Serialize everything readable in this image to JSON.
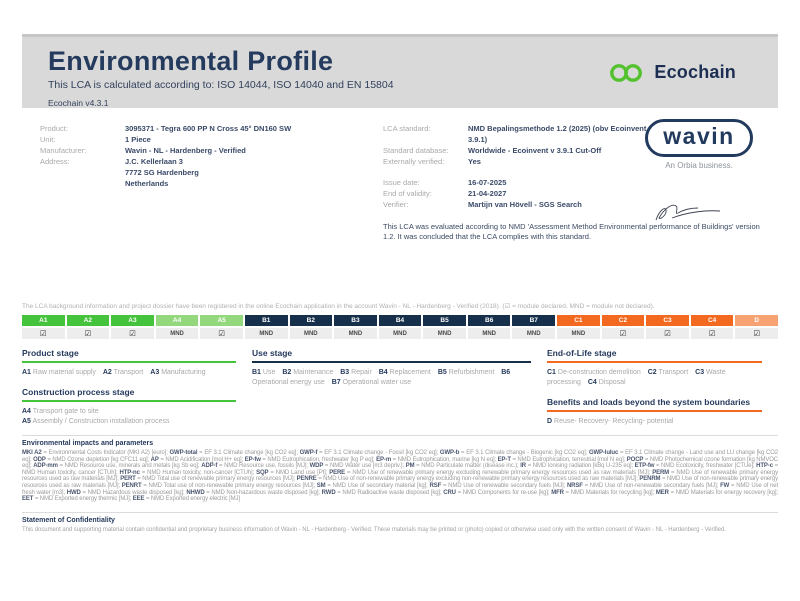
{
  "colors": {
    "brand_navy": "#223a5e",
    "ecochain_green": "#53c22e",
    "green_a": "#45c33c",
    "green_a_light": "#93d87d",
    "navy_b": "#16304c",
    "orange_c": "#f2691f",
    "salmon_d": "#f6a273",
    "band_grey": "#d9d9d9"
  },
  "header": {
    "title": "Environmental Profile",
    "subtitle": "This LCA is calculated according to: ISO 14044, ISO 14040 and EN 15804",
    "version": "Ecochain v4.3.1",
    "logo_text": "Ecochain"
  },
  "product_info": {
    "rows": [
      {
        "label": "Product:",
        "value": "3095371 - Tegra 600 PP N Cross 45° DN160 SW"
      },
      {
        "label": "Unit:",
        "value": "1 Piece"
      },
      {
        "label": "Manufacturer:",
        "value": "Wavin - NL - Hardenberg - Verified"
      },
      {
        "label": "Address:",
        "value": "J.C. Kellerlaan 3\n7772 SG Hardenberg\nNetherlands"
      }
    ]
  },
  "lca_info": {
    "rows": [
      {
        "label": "LCA standard:",
        "value": "NMD Bepalingsmethode 1.2 (2025) (obv Ecoinvent 3.9.1)"
      },
      {
        "label": "Standard database:",
        "value": "Worldwide - Ecoinvent v 3.9.1 Cut-Off"
      },
      {
        "label": "Externally verified:",
        "value": "Yes"
      }
    ],
    "rows2": [
      {
        "label": "Issue date:",
        "value": "16-07-2025"
      },
      {
        "label": "End of validity:",
        "value": "21-04-2027"
      },
      {
        "label": "Verifier:",
        "value": "Martijn van Hövell - SGS Search"
      }
    ],
    "evaluation_note": "This LCA was evaluated according to NMD 'Assessment Method Environmental performance of Buildings' version 1.2. It was concluded that the LCA complies with this standard."
  },
  "wavin": {
    "logo_text": "wavin",
    "tagline": "An Orbia business."
  },
  "registration_note": "The LCA background information and project dossier have been registered in the online Ecochain application in the account Wavin - NL - Hardenberg - Verified (2018). (☑ = module declared, MND = module not declared).",
  "module_table": {
    "declared_symbol": "☑",
    "mnd_symbol": "MND",
    "columns": [
      {
        "code": "A1",
        "group": "ga1",
        "status": "declared"
      },
      {
        "code": "A2",
        "group": "ga1",
        "status": "declared"
      },
      {
        "code": "A3",
        "group": "ga1",
        "status": "declared"
      },
      {
        "code": "A4",
        "group": "ga2",
        "status": "mnd"
      },
      {
        "code": "A5",
        "group": "ga2",
        "status": "declared"
      },
      {
        "code": "B1",
        "group": "gb",
        "status": "mnd"
      },
      {
        "code": "B2",
        "group": "gb",
        "status": "mnd"
      },
      {
        "code": "B3",
        "group": "gb",
        "status": "mnd"
      },
      {
        "code": "B4",
        "group": "gb",
        "status": "mnd"
      },
      {
        "code": "B5",
        "group": "gb",
        "status": "mnd"
      },
      {
        "code": "B6",
        "group": "gb",
        "status": "mnd"
      },
      {
        "code": "B7",
        "group": "gb",
        "status": "mnd"
      },
      {
        "code": "C1",
        "group": "gc",
        "status": "mnd"
      },
      {
        "code": "C2",
        "group": "gc",
        "status": "declared"
      },
      {
        "code": "C3",
        "group": "gc",
        "status": "declared"
      },
      {
        "code": "C4",
        "group": "gc",
        "status": "declared"
      },
      {
        "code": "D",
        "group": "gd",
        "status": "declared"
      }
    ]
  },
  "stages": {
    "product": {
      "title": "Product stage",
      "items": [
        {
          "code": "A1",
          "label": "Raw material supply"
        },
        {
          "code": "A2",
          "label": "Transport"
        },
        {
          "code": "A3",
          "label": "Manufacturing"
        }
      ]
    },
    "construction": {
      "title": "Construction process stage",
      "items": [
        {
          "code": "A4",
          "label": "Transport gate to site"
        },
        {
          "code": "A5",
          "label": "Assembly / Construction installation process"
        }
      ]
    },
    "use": {
      "title": "Use stage",
      "items": [
        {
          "code": "B1",
          "label": "Use"
        },
        {
          "code": "B2",
          "label": "Maintenance"
        },
        {
          "code": "B3",
          "label": "Repair"
        },
        {
          "code": "B4",
          "label": "Replacement"
        },
        {
          "code": "B5",
          "label": "Refurbishment"
        },
        {
          "code": "B6",
          "label": "Operational energy use"
        },
        {
          "code": "B7",
          "label": "Operational water use"
        }
      ]
    },
    "eol": {
      "title": "End-of-Life stage",
      "items": [
        {
          "code": "C1",
          "label": "De-construction demolition"
        },
        {
          "code": "C2",
          "label": "Transport"
        },
        {
          "code": "C3",
          "label": "Waste processing"
        },
        {
          "code": "C4",
          "label": "Disposal"
        }
      ]
    },
    "benefits": {
      "title": "Benefits and loads beyond the system boundaries",
      "items": [
        {
          "code": "D",
          "label": "Reuse- Recovery- Recycling- potential"
        }
      ]
    }
  },
  "parameters": {
    "title": "Environmental impacts and parameters",
    "items": [
      {
        "code": "MKI A2",
        "desc": "Environmental Costs Indicator (MKI A2) [euro]"
      },
      {
        "code": "GWP-total",
        "desc": "EF 3.1 Climate change [kg CO2 eq]"
      },
      {
        "code": "GWP-f",
        "desc": "EF 3.1 Climate change - Fossil [kg CO2 eq]"
      },
      {
        "code": "GWP-b",
        "desc": "EF 3.1 Climate change - Biogenic [kg CO2 eq]"
      },
      {
        "code": "GWP-luluc",
        "desc": "EF 3.1 Climate change - Land use and LU change [kg CO2 eq]"
      },
      {
        "code": "ODP",
        "desc": "NMD Ozone depletion [kg CFC11 eq]"
      },
      {
        "code": "AP",
        "desc": "NMD Acidification [mol H+ eq]"
      },
      {
        "code": "EP-fw",
        "desc": "NMD Eutrophication, freshwater [kg P eq]"
      },
      {
        "code": "EP-m",
        "desc": "NMD Eutrophication, marine [kg N eq]"
      },
      {
        "code": "EP-T",
        "desc": "NMD Eutrophication, terrestrial [mol N eq]"
      },
      {
        "code": "POCP",
        "desc": "NMD Photochemical ozone formation [kg NMVOC eq]"
      },
      {
        "code": "ADP-mm",
        "desc": "NMD Resource use, minerals and metals [kg Sb eq]"
      },
      {
        "code": "ADP-f",
        "desc": "NMD Resource use, fossils [MJ]"
      },
      {
        "code": "WDP",
        "desc": "NMD Water use [m3 depriv.]"
      },
      {
        "code": "PM",
        "desc": "NMD Particulate matter (disease inc.)"
      },
      {
        "code": "IR",
        "desc": "NMD Ionising radiation [kBq U-235 eq]"
      },
      {
        "code": "ETP-fw",
        "desc": "NMD Ecotoxicity, freshwater [CTUe]"
      },
      {
        "code": "HTP-c",
        "desc": "NMD Human toxicity, cancer [CTUh]"
      },
      {
        "code": "HTP-nc",
        "desc": "NMD Human toxicity, non-cancer [CTUh]"
      },
      {
        "code": "SQP",
        "desc": "NMD Land use [Pt]"
      },
      {
        "code": "PERE",
        "desc": "NMD Use of renewable primary energy excluding renewable primary energy resources used as raw materials [MJ]"
      },
      {
        "code": "PERM",
        "desc": "NMD Use of renewable primary energy resources used as raw materials [MJ]"
      },
      {
        "code": "PERT",
        "desc": "NMD Total use of renewable primary energy resources [MJ]"
      },
      {
        "code": "PENRE",
        "desc": "NMD Use of non-renewable primary energy excluding non-renewable primary energy resources used as raw materials [MJ]"
      },
      {
        "code": "PENRM",
        "desc": "NMD Use of non-renewable primary energy resources used as raw materials [MJ]"
      },
      {
        "code": "PENRT",
        "desc": "NMD Total use of non-renewable primary energy resources [MJ]"
      },
      {
        "code": "SM",
        "desc": "NMD Use of secondary material [kg]"
      },
      {
        "code": "RSF",
        "desc": "NMD Use of renewable secondary fuels [MJ]"
      },
      {
        "code": "NRSF",
        "desc": "NMD Use of non-renewable secondary fuels [MJ]"
      },
      {
        "code": "FW",
        "desc": "NMD Use of net fresh water [m3]"
      },
      {
        "code": "HWD",
        "desc": "NMD Hazardous waste disposed [kg]"
      },
      {
        "code": "NHWD",
        "desc": "NMD Non-hazardous waste disposed [kg]"
      },
      {
        "code": "RWD",
        "desc": "NMD Radioactive waste disposed [kg]"
      },
      {
        "code": "CRU",
        "desc": "NMD Components for re-use [kg]"
      },
      {
        "code": "MFR",
        "desc": "NMD Materials for recycling [kg]"
      },
      {
        "code": "MER",
        "desc": "NMD Materials for energy recovery [kg]"
      },
      {
        "code": "EET",
        "desc": "NMD Exported energy thermic [MJ]"
      },
      {
        "code": "EEE",
        "desc": "NMD Exported energy electric [MJ]"
      }
    ]
  },
  "confidentiality": {
    "title": "Statement of Confidentiality",
    "text": "This document and supporting material contain confidential and proprietary business information of Wavin - NL - Hardenberg - Verified. These materials may be printed or (photo) copied or otherwise used only with the written consent of Wavin - NL - Hardenberg - Verified."
  }
}
